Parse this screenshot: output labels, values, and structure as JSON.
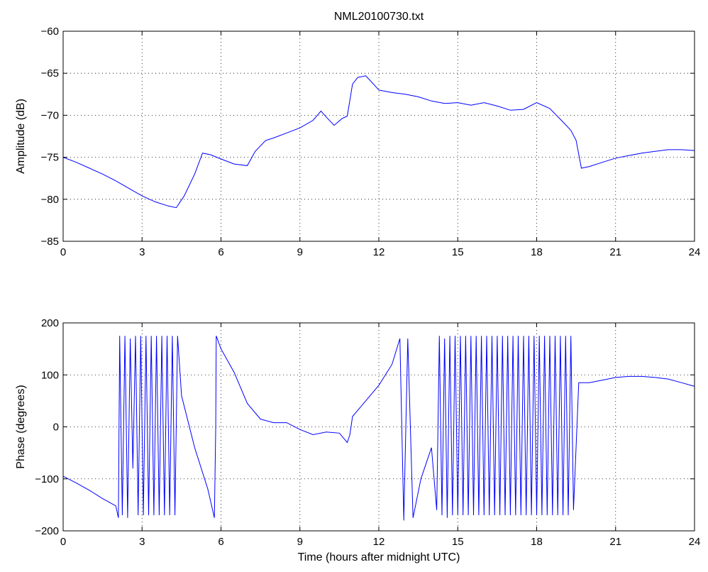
{
  "title": "NML20100730.txt",
  "chart_data": [
    {
      "type": "line",
      "title": "NML20100730.txt",
      "xlabel": "",
      "ylabel": "Amplitude (dB)",
      "xlim": [
        0,
        24
      ],
      "ylim": [
        -85,
        -60
      ],
      "xticks": [
        0,
        3,
        6,
        9,
        12,
        15,
        18,
        21,
        24
      ],
      "yticks": [
        -85,
        -80,
        -75,
        -70,
        -65,
        -60
      ],
      "grid": true,
      "color": "#0000ff",
      "series": [
        {
          "x": [
            0,
            0.5,
            1,
            1.5,
            2,
            2.5,
            3,
            3.5,
            4,
            4.3,
            4.6,
            5,
            5.3,
            5.6,
            6,
            6.5,
            7,
            7.3,
            7.7,
            8,
            8.5,
            9,
            9.5,
            9.8,
            10,
            10.3,
            10.6,
            10.8,
            11,
            11.2,
            11.5,
            11.8,
            12,
            12.5,
            13,
            13.5,
            14,
            14.5,
            15,
            15.5,
            16,
            16.5,
            17,
            17.5,
            18,
            18.5,
            19,
            19.3,
            19.5,
            19.7,
            20,
            20.5,
            21,
            21.5,
            22,
            22.5,
            23,
            23.5,
            24
          ],
          "y": [
            -75,
            -75.6,
            -76.3,
            -77,
            -77.8,
            -78.7,
            -79.6,
            -80.3,
            -80.8,
            -81,
            -79.6,
            -77,
            -74.5,
            -74.7,
            -75.2,
            -75.8,
            -76,
            -74.3,
            -73,
            -72.7,
            -72.1,
            -71.5,
            -70.6,
            -69.5,
            -70.2,
            -71.2,
            -70.4,
            -70.1,
            -66.3,
            -65.5,
            -65.3,
            -66.3,
            -67,
            -67.3,
            -67.5,
            -67.8,
            -68.3,
            -68.6,
            -68.5,
            -68.8,
            -68.5,
            -68.9,
            -69.4,
            -69.3,
            -68.5,
            -69.2,
            -70.8,
            -71.8,
            -73,
            -76.3,
            -76.1,
            -75.6,
            -75.1,
            -74.8,
            -74.5,
            -74.3,
            -74.1,
            -74.1,
            -74.2
          ]
        }
      ]
    },
    {
      "type": "line",
      "title": "",
      "xlabel": "Time (hours after midnight UTC)",
      "ylabel": "Phase (degrees)",
      "xlim": [
        0,
        24
      ],
      "ylim": [
        -200,
        200
      ],
      "xticks": [
        0,
        3,
        6,
        9,
        12,
        15,
        18,
        21,
        24
      ],
      "yticks": [
        -200,
        -100,
        0,
        100,
        200
      ],
      "grid": true,
      "color": "#0000ff",
      "series": [
        {
          "x": [
            0,
            0.5,
            1,
            1.5,
            2,
            2.1,
            2.15,
            2.25,
            2.35,
            2.45,
            2.55,
            2.65,
            2.75,
            2.85,
            2.95,
            3.05,
            3.15,
            3.25,
            3.35,
            3.45,
            3.55,
            3.65,
            3.75,
            3.85,
            3.95,
            4.05,
            4.15,
            4.25,
            4.35,
            4.5,
            5,
            5.5,
            5.75,
            5.8,
            5.82,
            6,
            6.5,
            7,
            7.5,
            8,
            8.5,
            9,
            9.5,
            10,
            10.5,
            10.8,
            10.9,
            11,
            11.5,
            12,
            12.5,
            12.8,
            12.95,
            13.1,
            13.3,
            13.6,
            14,
            14.2,
            14.3,
            14.4,
            14.5,
            14.6,
            14.7,
            14.8,
            14.9,
            15,
            15.1,
            15.2,
            15.3,
            15.4,
            15.5,
            15.6,
            15.7,
            15.8,
            15.9,
            16,
            16.1,
            16.2,
            16.3,
            16.4,
            16.5,
            16.6,
            16.7,
            16.8,
            16.9,
            17,
            17.1,
            17.2,
            17.3,
            17.4,
            17.5,
            17.6,
            17.7,
            17.8,
            17.9,
            18,
            18.1,
            18.2,
            18.3,
            18.4,
            18.5,
            18.6,
            18.7,
            18.8,
            18.9,
            19,
            19.1,
            19.2,
            19.3,
            19.4,
            19.6,
            20,
            20.5,
            21,
            21.5,
            22,
            22.5,
            23,
            23.5,
            24
          ],
          "y": [
            -95,
            -108,
            -122,
            -138,
            -152,
            -175,
            175,
            -170,
            175,
            -175,
            170,
            -80,
            175,
            -170,
            175,
            -170,
            175,
            -170,
            175,
            -170,
            175,
            -170,
            175,
            -170,
            175,
            -170,
            175,
            -170,
            175,
            60,
            -40,
            -120,
            -175,
            0,
            175,
            150,
            105,
            45,
            15,
            8,
            8,
            -5,
            -15,
            -10,
            -12,
            -30,
            -15,
            20,
            50,
            80,
            120,
            170,
            -180,
            170,
            -175,
            -100,
            -40,
            -160,
            175,
            -170,
            170,
            -175,
            175,
            -170,
            175,
            -170,
            175,
            -170,
            175,
            -170,
            175,
            -170,
            175,
            -170,
            175,
            -170,
            175,
            -170,
            175,
            -170,
            175,
            -170,
            175,
            -170,
            175,
            -170,
            175,
            -170,
            175,
            -170,
            175,
            -170,
            175,
            -170,
            175,
            -170,
            175,
            -170,
            175,
            -170,
            175,
            -170,
            175,
            -170,
            175,
            -170,
            175,
            -170,
            175,
            -160,
            85,
            85,
            90,
            95,
            97,
            97,
            95,
            92,
            85,
            78
          ]
        }
      ]
    }
  ]
}
